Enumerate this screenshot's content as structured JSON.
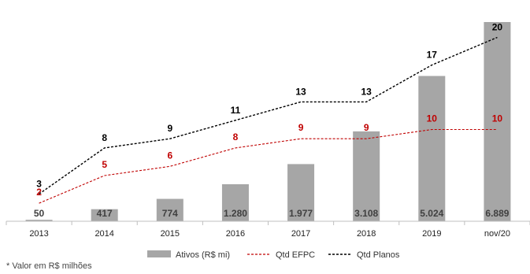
{
  "chart_data": {
    "type": "bar",
    "categories": [
      "2013",
      "2014",
      "2015",
      "2016",
      "2017",
      "2018",
      "2019",
      "nov/20"
    ],
    "series": [
      {
        "name": "Ativos (R$ mi)",
        "kind": "bar",
        "color": "#a6a6a6",
        "values": [
          50,
          417,
          774,
          1280,
          1977,
          3108,
          5024,
          6889
        ],
        "labels": [
          "50",
          "417",
          "774",
          "1.280",
          "1.977",
          "3.108",
          "5.024",
          "6.889"
        ]
      },
      {
        "name": "Qtd EFPC",
        "kind": "line",
        "style": "dashed",
        "color": "#c00000",
        "values": [
          2,
          5,
          6,
          8,
          9,
          9,
          10,
          10
        ]
      },
      {
        "name": "Qtd Planos",
        "kind": "line",
        "style": "dashed",
        "color": "#000000",
        "values": [
          3,
          8,
          9,
          11,
          13,
          13,
          17,
          20
        ]
      }
    ],
    "legend_position": "bottom",
    "grid": false
  },
  "footnote": "* Valor em R$ milhões"
}
